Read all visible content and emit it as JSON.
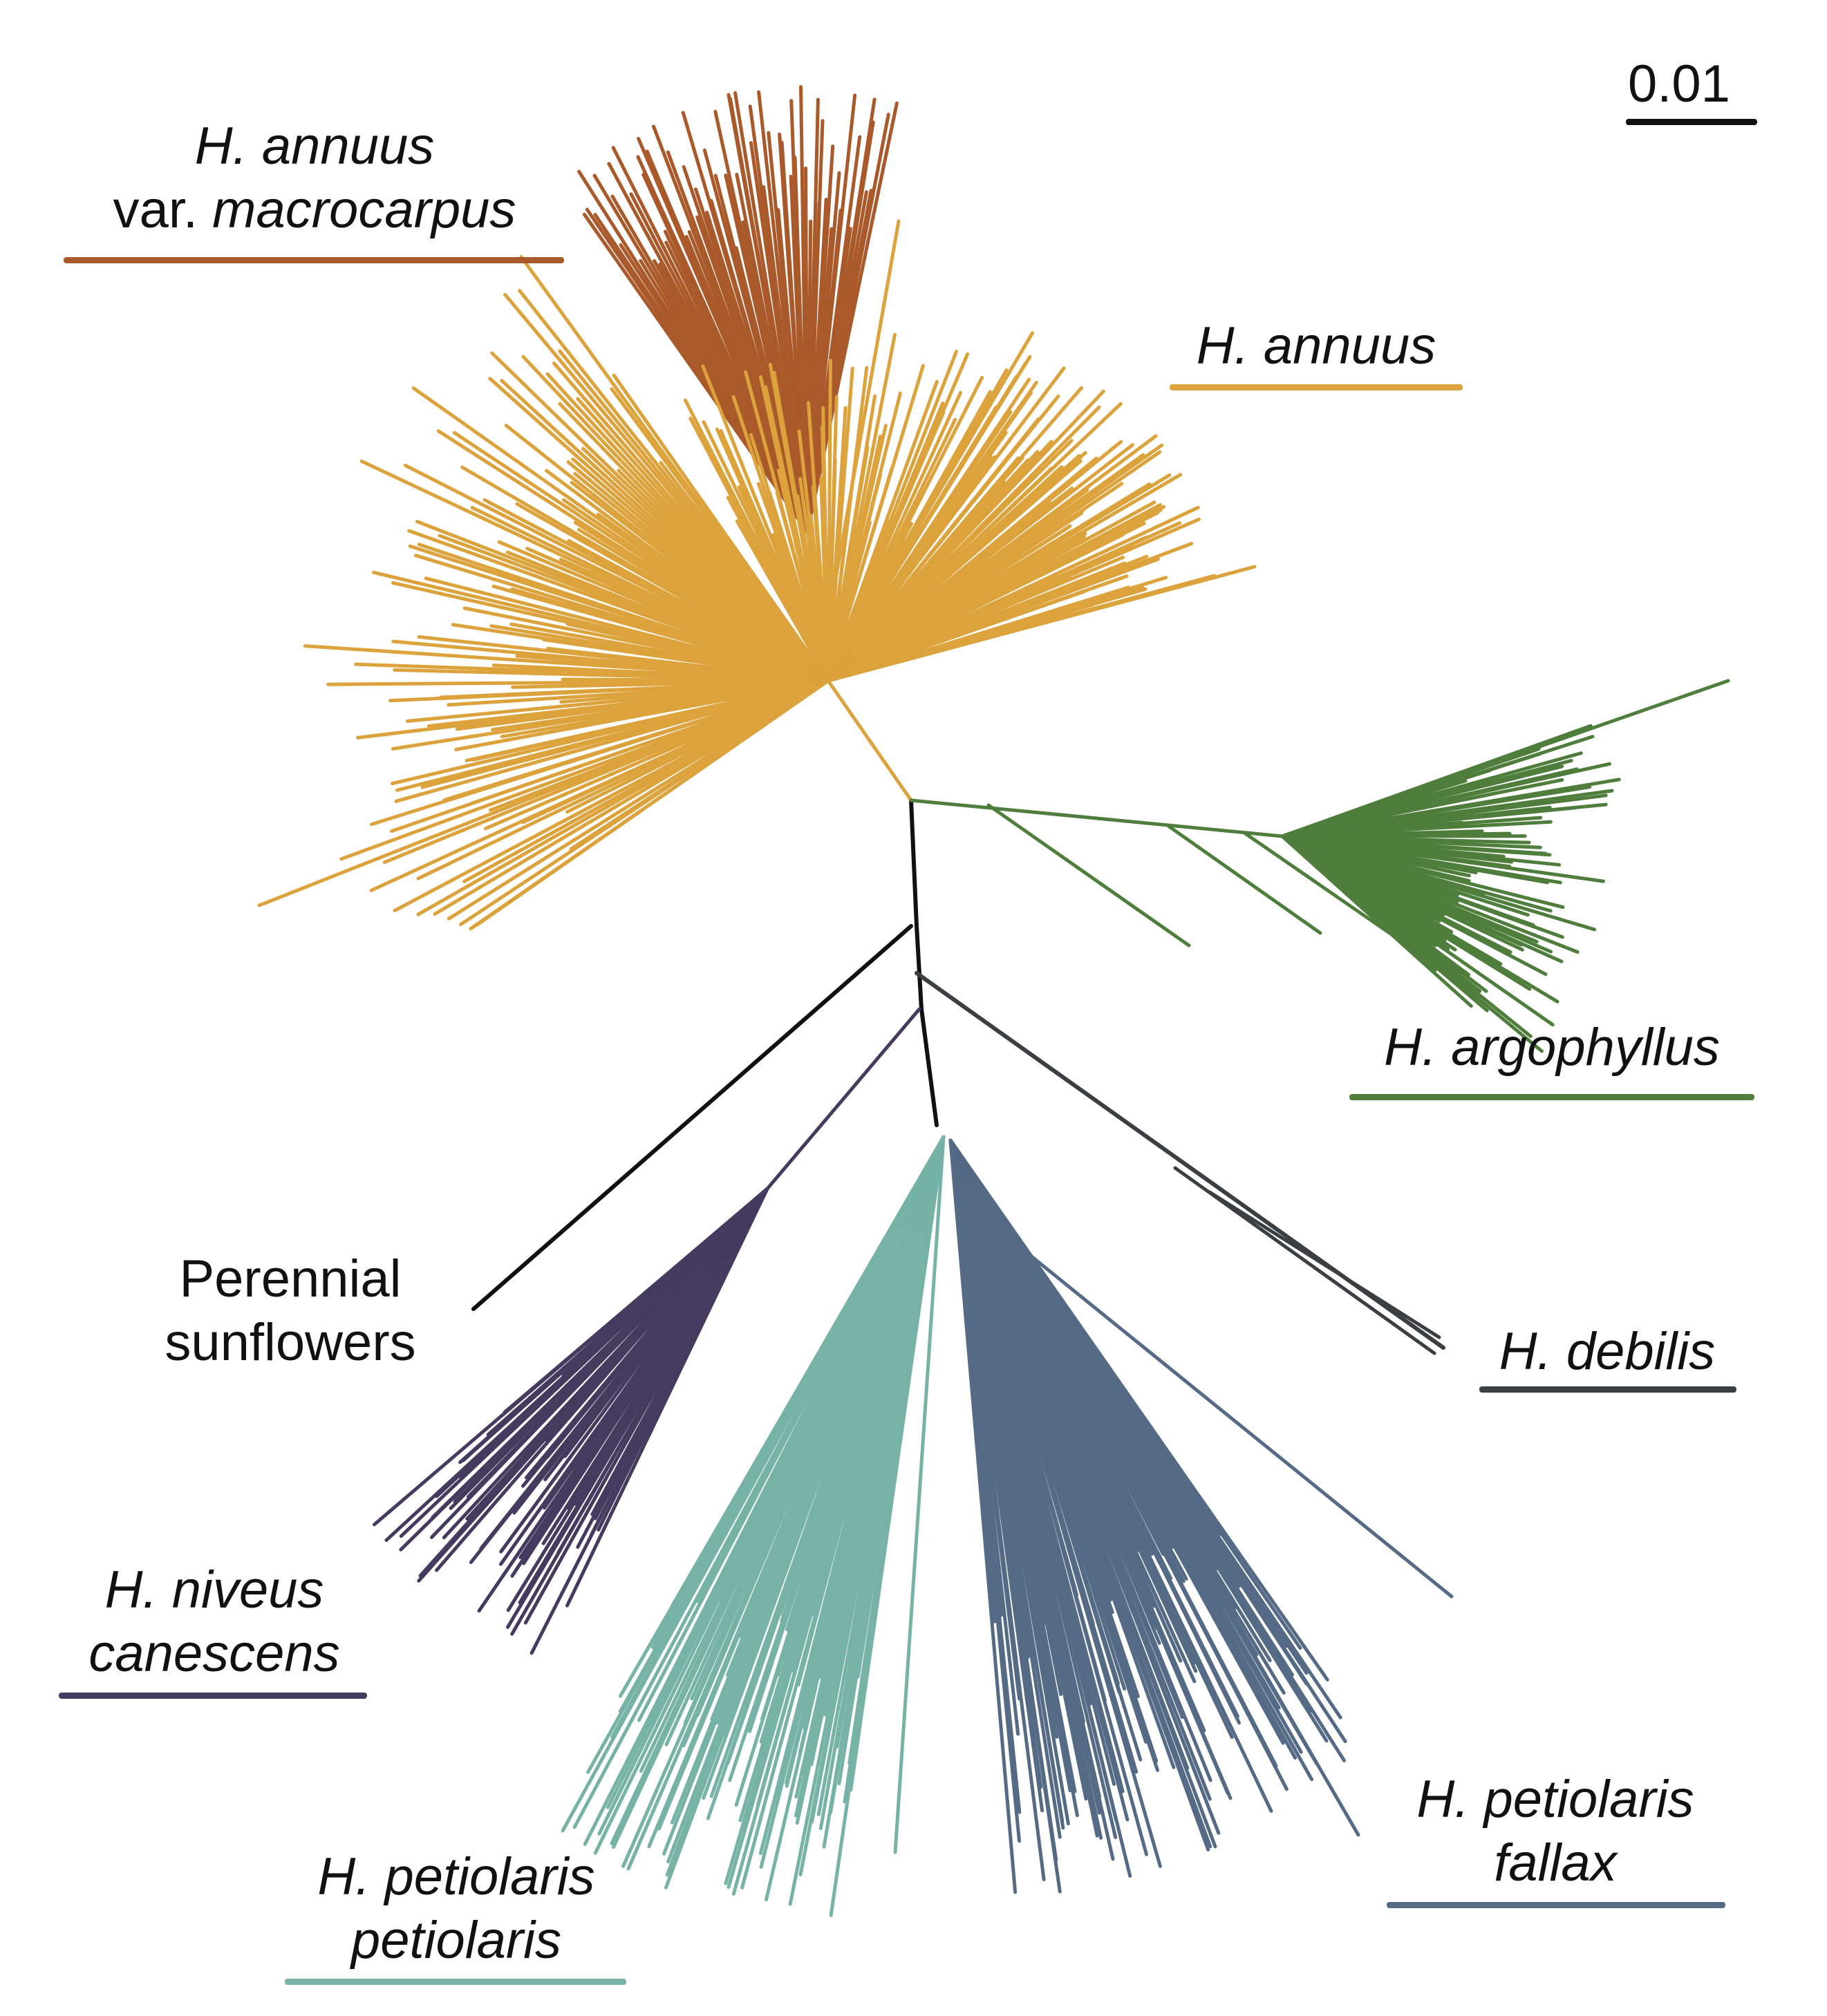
{
  "figure": {
    "scale_bar": {
      "label": "0.01",
      "color": "#111111"
    },
    "clades": {
      "macrocarpus": {
        "line1": "H. annuus",
        "line2_prefix": "var. ",
        "line2_italic": "macrocarpus",
        "color": "#a9592a"
      },
      "annuus": {
        "line1": "H. annuus",
        "color": "#dca23c"
      },
      "argophyllus": {
        "line1": "H. argophyllus",
        "color": "#4f7d3c"
      },
      "debilis": {
        "line1": "H. debilis",
        "color": "#3a3f44"
      },
      "perennial": {
        "line1": "Perennial",
        "line2": "sunflowers",
        "color": "#111111"
      },
      "niveus": {
        "line1": "H. niveus",
        "line2": "canescens",
        "color": "#463a5f"
      },
      "petiolaris": {
        "line1": "H. petiolaris",
        "line2": "petiolaris",
        "color": "#76b2a6"
      },
      "fallax": {
        "line1": "H. petiolaris",
        "line2": "fallax",
        "color": "#546a85"
      }
    },
    "backbone_color": "#111111"
  }
}
